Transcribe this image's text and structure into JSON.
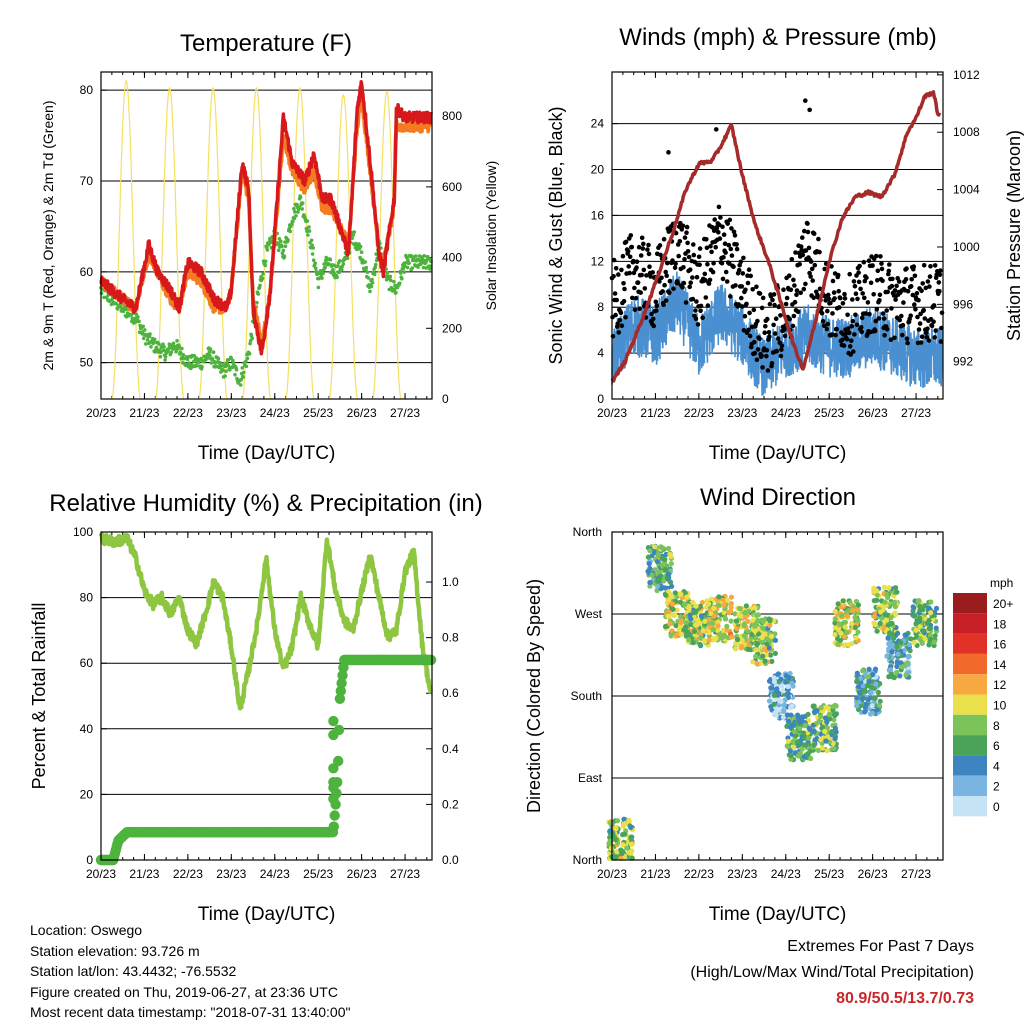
{
  "chart_data": [
    {
      "type": "line",
      "title": "Temperature (F)",
      "xlabel": "Time (Day/UTC)",
      "ylabel": "2m & 9m T (Red, Orange) & 2m Td (Green)",
      "y2label": "Solar Insolation (Yellow)",
      "x_ticks": [
        "20/23",
        "21/23",
        "22/23",
        "23/23",
        "24/23",
        "25/23",
        "26/23",
        "27/23"
      ],
      "y_ticks": [
        "50",
        "60",
        "70",
        "80"
      ],
      "y2_ticks": [
        "0",
        "200",
        "400",
        "600",
        "800"
      ],
      "ylim": [
        46,
        82
      ],
      "y2lim": [
        0,
        925
      ],
      "grid": "horizontal",
      "colors": {
        "t2m": "#d7191c",
        "t9m": "#f47b20",
        "td": "#4db33d",
        "solar": "#f5e062"
      },
      "series": [
        {
          "key": "t2m",
          "values": [
            [
              0,
              59
            ],
            [
              0.5,
              57
            ],
            [
              0.8,
              56
            ],
            [
              1.1,
              63
            ],
            [
              1.3,
              60
            ],
            [
              1.6,
              58
            ],
            [
              1.8,
              56
            ],
            [
              2.0,
              61
            ],
            [
              2.3,
              60
            ],
            [
              2.6,
              57
            ],
            [
              2.9,
              56
            ],
            [
              3.0,
              58
            ],
            [
              3.25,
              72
            ],
            [
              3.4,
              69
            ],
            [
              3.5,
              56
            ],
            [
              3.7,
              51
            ],
            [
              3.9,
              58
            ],
            [
              4.2,
              77
            ],
            [
              4.4,
              72
            ],
            [
              4.7,
              70
            ],
            [
              4.9,
              73
            ],
            [
              5.1,
              68
            ],
            [
              5.3,
              68
            ],
            [
              5.7,
              62
            ],
            [
              5.9,
              78
            ],
            [
              6.0,
              80.9
            ],
            [
              6.2,
              72
            ],
            [
              6.4,
              62
            ],
            [
              6.5,
              60
            ],
            [
              6.75,
              68
            ],
            [
              6.8,
              78
            ],
            [
              7.0,
              77
            ]
          ]
        },
        {
          "key": "t9m",
          "values": [
            [
              0,
              59
            ],
            [
              0.5,
              57
            ],
            [
              0.8,
              56
            ],
            [
              1.1,
              62
            ],
            [
              1.3,
              60
            ],
            [
              1.6,
              57
            ],
            [
              1.8,
              56
            ],
            [
              2.0,
              60
            ],
            [
              2.3,
              59
            ],
            [
              2.6,
              56
            ],
            [
              2.9,
              56
            ],
            [
              3.0,
              58
            ],
            [
              3.25,
              71
            ],
            [
              3.4,
              68
            ],
            [
              3.5,
              57
            ],
            [
              3.7,
              52
            ],
            [
              3.9,
              58
            ],
            [
              4.2,
              75
            ],
            [
              4.4,
              71
            ],
            [
              4.7,
              69
            ],
            [
              4.9,
              71
            ],
            [
              5.1,
              67
            ],
            [
              5.3,
              67
            ],
            [
              5.7,
              63
            ],
            [
              5.9,
              76
            ],
            [
              6.0,
              79
            ],
            [
              6.2,
              71
            ],
            [
              6.4,
              62
            ],
            [
              6.5,
              61
            ],
            [
              6.75,
              67
            ],
            [
              6.8,
              76
            ],
            [
              7.0,
              76
            ]
          ]
        },
        {
          "key": "td",
          "values": [
            [
              0,
              58
            ],
            [
              0.5,
              56
            ],
            [
              0.8,
              55
            ],
            [
              1.0,
              53
            ],
            [
              1.2,
              52
            ],
            [
              1.5,
              51
            ],
            [
              1.7,
              52
            ],
            [
              2.0,
              50
            ],
            [
              2.3,
              50
            ],
            [
              2.5,
              51
            ],
            [
              2.8,
              49
            ],
            [
              3.0,
              50
            ],
            [
              3.2,
              48
            ],
            [
              3.4,
              51
            ],
            [
              3.6,
              57
            ],
            [
              3.8,
              62
            ],
            [
              4.0,
              64
            ],
            [
              4.2,
              62
            ],
            [
              4.4,
              66
            ],
            [
              4.6,
              68
            ],
            [
              4.8,
              64
            ],
            [
              5.0,
              59
            ],
            [
              5.2,
              61
            ],
            [
              5.4,
              60
            ],
            [
              5.6,
              61
            ],
            [
              5.8,
              64
            ],
            [
              6.0,
              62
            ],
            [
              6.2,
              58
            ],
            [
              6.4,
              63
            ],
            [
              6.6,
              59
            ],
            [
              6.8,
              58
            ],
            [
              7.0,
              61
            ]
          ]
        },
        {
          "key": "solar",
          "peaks": [
            0.58,
            1.58,
            2.58,
            3.58,
            4.58,
            5.58,
            6.58
          ],
          "peak_values": [
            900,
            880,
            880,
            880,
            880,
            860,
            870
          ]
        }
      ]
    },
    {
      "type": "scatter",
      "title": "Winds (mph) & Pressure (mb)",
      "xlabel": "Time (Day/UTC)",
      "ylabel": "Sonic Wind & Gust (Blue, Black)",
      "y2label": "Station Pressure (Maroon)",
      "x_ticks": [
        "20/23",
        "21/23",
        "22/23",
        "23/23",
        "24/23",
        "25/23",
        "26/23",
        "27/23"
      ],
      "y_ticks": [
        "0",
        "4",
        "8",
        "12",
        "16",
        "20",
        "24"
      ],
      "y2_ticks": [
        "992",
        "996",
        "1000",
        "1004",
        "1008",
        "1012"
      ],
      "ylim": [
        0,
        28.5
      ],
      "y2lim": [
        989.4,
        1012.2
      ],
      "grid": "horizontal",
      "colors": {
        "wind": "#4a90d0",
        "gust": "#000000",
        "pressure": "#a52a2a"
      },
      "series": [
        {
          "key": "wind_mean",
          "values": [
            [
              0,
              3
            ],
            [
              0.5,
              6
            ],
            [
              1.0,
              5
            ],
            [
              1.5,
              8
            ],
            [
              2.0,
              4
            ],
            [
              2.5,
              7
            ],
            [
              3.0,
              5
            ],
            [
              3.5,
              2
            ],
            [
              4.0,
              4
            ],
            [
              4.5,
              5
            ],
            [
              5.0,
              4
            ],
            [
              5.5,
              4
            ],
            [
              6.0,
              5
            ],
            [
              6.5,
              4
            ],
            [
              7.0,
              3
            ]
          ]
        },
        {
          "key": "gust_mean",
          "values": [
            [
              0,
              8
            ],
            [
              0.5,
              11
            ],
            [
              1.0,
              9
            ],
            [
              1.5,
              13
            ],
            [
              2.0,
              9
            ],
            [
              2.5,
              14
            ],
            [
              3.0,
              9
            ],
            [
              3.5,
              5
            ],
            [
              4.0,
              7
            ],
            [
              4.5,
              13
            ],
            [
              5.0,
              8
            ],
            [
              5.5,
              7
            ],
            [
              6.0,
              9
            ],
            [
              6.5,
              8
            ],
            [
              7.0,
              8
            ]
          ]
        },
        {
          "key": "pressure",
          "values": [
            [
              0,
              990.6
            ],
            [
              0.3,
              992
            ],
            [
              0.7,
              995
            ],
            [
              1.0,
              997.5
            ],
            [
              1.4,
              1001
            ],
            [
              1.7,
              1004
            ],
            [
              2.0,
              1005.8
            ],
            [
              2.3,
              1006
            ],
            [
              2.5,
              1007
            ],
            [
              2.75,
              1008.5
            ],
            [
              3.0,
              1005
            ],
            [
              3.3,
              1001.5
            ],
            [
              3.6,
              999
            ],
            [
              3.9,
              996
            ],
            [
              4.2,
              993
            ],
            [
              4.4,
              991.5
            ],
            [
              4.7,
              995
            ],
            [
              5.0,
              999
            ],
            [
              5.3,
              1002
            ],
            [
              5.6,
              1003.5
            ],
            [
              5.9,
              1003.8
            ],
            [
              6.2,
              1003.5
            ],
            [
              6.5,
              1005
            ],
            [
              6.8,
              1008
            ],
            [
              7.0,
              1009
            ],
            [
              7.2,
              1010.5
            ],
            [
              7.4,
              1010.8
            ],
            [
              7.5,
              1009.3
            ]
          ]
        }
      ]
    },
    {
      "type": "line",
      "title": "Relative Humidity (%) & Precipitation (in)",
      "xlabel": "Time (Day/UTC)",
      "ylabel": "Percent & Total Rainfall",
      "x_ticks": [
        "20/23",
        "21/23",
        "22/23",
        "23/23",
        "24/23",
        "25/23",
        "26/23",
        "27/23"
      ],
      "y_ticks": [
        "0",
        "20",
        "40",
        "60",
        "80",
        "100"
      ],
      "y2_ticks": [
        "0.0",
        "0.2",
        "0.4",
        "0.6",
        "0.8",
        "1.0"
      ],
      "ylim": [
        0,
        100
      ],
      "y2lim": [
        0,
        1.18
      ],
      "grid": "horizontal",
      "colors": {
        "rh": "#8ec641",
        "precip": "#4db33d"
      },
      "series": [
        {
          "key": "rh",
          "values": [
            [
              0,
              98
            ],
            [
              0.3,
              97
            ],
            [
              0.6,
              98
            ],
            [
              0.8,
              92
            ],
            [
              1.0,
              82
            ],
            [
              1.2,
              78
            ],
            [
              1.4,
              80
            ],
            [
              1.6,
              75
            ],
            [
              1.8,
              80
            ],
            [
              2.0,
              70
            ],
            [
              2.2,
              66
            ],
            [
              2.4,
              75
            ],
            [
              2.6,
              85
            ],
            [
              2.8,
              80
            ],
            [
              3.0,
              65
            ],
            [
              3.2,
              46
            ],
            [
              3.4,
              58
            ],
            [
              3.6,
              72
            ],
            [
              3.8,
              92
            ],
            [
              4.0,
              70
            ],
            [
              4.2,
              58
            ],
            [
              4.4,
              65
            ],
            [
              4.6,
              80
            ],
            [
              4.8,
              72
            ],
            [
              5.0,
              65
            ],
            [
              5.2,
              98
            ],
            [
              5.4,
              82
            ],
            [
              5.6,
              73
            ],
            [
              5.8,
              70
            ],
            [
              6.0,
              82
            ],
            [
              6.2,
              93
            ],
            [
              6.4,
              80
            ],
            [
              6.6,
              68
            ],
            [
              6.8,
              70
            ],
            [
              7.0,
              88
            ],
            [
              7.2,
              94
            ],
            [
              7.4,
              65
            ],
            [
              7.6,
              50
            ]
          ]
        },
        {
          "key": "precip",
          "values": [
            [
              0,
              0
            ],
            [
              0.28,
              0
            ],
            [
              0.4,
              0.07
            ],
            [
              0.6,
              0.1
            ],
            [
              5.3,
              0.1
            ],
            [
              5.35,
              0.1
            ],
            [
              5.45,
              0.3
            ],
            [
              5.5,
              0.58
            ],
            [
              5.6,
              0.72
            ],
            [
              7.6,
              0.72
            ]
          ]
        }
      ]
    },
    {
      "type": "scatter",
      "title": "Wind Direction",
      "xlabel": "Time (Day/UTC)",
      "ylabel": "Direction (Colored By Speed)",
      "x_ticks": [
        "20/23",
        "21/23",
        "22/23",
        "23/23",
        "24/23",
        "25/23",
        "26/23",
        "27/23"
      ],
      "y_ticks": [
        "North",
        "East",
        "South",
        "West",
        "North"
      ],
      "ylim": [
        0,
        360
      ],
      "grid": "horizontal",
      "legend": "right",
      "legend_title": "mph",
      "legend_labels": [
        "20+",
        "18",
        "16",
        "14",
        "12",
        "10",
        "8",
        "6",
        "4",
        "2",
        "0"
      ],
      "legend_colors": [
        "#9b1c1f",
        "#c62026",
        "#e13128",
        "#f26a2b",
        "#f7a841",
        "#e9e04c",
        "#7cc35a",
        "#49a45a",
        "#3d85c0",
        "#7ab5e2",
        "#c4e3f5"
      ],
      "clusters": [
        {
          "day": 0.2,
          "dir": 20,
          "spd": 8
        },
        {
          "day": 1.1,
          "dir": 320,
          "spd": 6
        },
        {
          "day": 1.5,
          "dir": 270,
          "spd": 9
        },
        {
          "day": 2.0,
          "dir": 260,
          "spd": 8
        },
        {
          "day": 2.5,
          "dir": 265,
          "spd": 10
        },
        {
          "day": 3.1,
          "dir": 255,
          "spd": 9
        },
        {
          "day": 3.5,
          "dir": 240,
          "spd": 8
        },
        {
          "day": 3.9,
          "dir": 180,
          "spd": 2
        },
        {
          "day": 4.3,
          "dir": 135,
          "spd": 6
        },
        {
          "day": 4.9,
          "dir": 145,
          "spd": 7
        },
        {
          "day": 5.4,
          "dir": 260,
          "spd": 9
        },
        {
          "day": 5.9,
          "dir": 185,
          "spd": 4
        },
        {
          "day": 6.3,
          "dir": 275,
          "spd": 8
        },
        {
          "day": 6.6,
          "dir": 225,
          "spd": 4
        },
        {
          "day": 7.2,
          "dir": 260,
          "spd": 7
        }
      ]
    }
  ],
  "info": {
    "location": "Location: Oswego",
    "elevation": "Station elevation: 93.726 m",
    "latlon": "Station lat/lon: 43.4432; -76.5532",
    "created": "Figure created on Thu, 2019-06-27, at 23:36 UTC",
    "recent": "Most recent data timestamp: \"2018-07-31 13:40:00\""
  },
  "extremes": {
    "title": "Extremes For Past 7 Days",
    "subtitle": "(High/Low/Max Wind/Total Precipitation)",
    "values": "80.9/50.5/13.7/0.73"
  }
}
